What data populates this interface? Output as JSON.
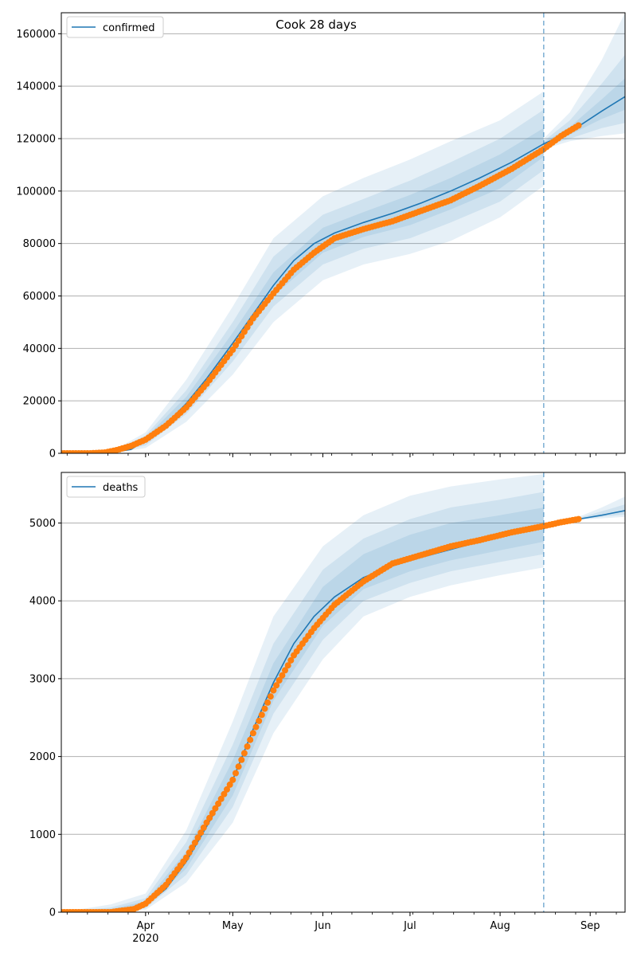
{
  "colors": {
    "model_line": "#1f77b4",
    "observed_points": "#ff7f0e",
    "band": "#1f77b4",
    "grid": "#b0b0b0",
    "forecast_marker": "#1f77b4"
  },
  "chart_data": [
    {
      "type": "line",
      "title": "Cook 28 days",
      "legend": {
        "entries": [
          "confirmed"
        ],
        "placement": "top-left"
      },
      "x_tick_labels": [
        {
          "date": "2020-04-01",
          "label": "Apr",
          "year": "2020"
        },
        {
          "date": "2020-05-01",
          "label": "May",
          "year": ""
        },
        {
          "date": "2020-06-01",
          "label": "Jun",
          "year": ""
        },
        {
          "date": "2020-07-01",
          "label": "Jul",
          "year": ""
        },
        {
          "date": "2020-08-01",
          "label": "Aug",
          "year": ""
        },
        {
          "date": "2020-09-01",
          "label": "Sep",
          "year": ""
        }
      ],
      "show_x_labels": false,
      "xlim": [
        "2020-03-03",
        "2020-09-13"
      ],
      "ylim": [
        0,
        168000
      ],
      "y_ticks": [
        0,
        20000,
        40000,
        60000,
        80000,
        100000,
        120000,
        140000,
        160000
      ],
      "grid": "y",
      "forecast_start": "2020-08-16",
      "series": [
        {
          "name": "confirmed",
          "style": "line",
          "x": [
            "2020-03-03",
            "2020-03-13",
            "2020-03-20",
            "2020-03-27",
            "2020-04-01",
            "2020-04-08",
            "2020-04-15",
            "2020-04-22",
            "2020-05-01",
            "2020-05-08",
            "2020-05-15",
            "2020-05-22",
            "2020-05-29",
            "2020-06-05",
            "2020-06-15",
            "2020-06-25",
            "2020-07-05",
            "2020-07-15",
            "2020-07-25",
            "2020-08-05",
            "2020-08-16",
            "2020-08-25",
            "2020-09-05",
            "2020-09-13"
          ],
          "y": [
            0,
            0,
            200,
            1500,
            5000,
            11000,
            19000,
            28500,
            42000,
            53000,
            64000,
            73500,
            80000,
            84000,
            88000,
            91500,
            95500,
            100000,
            105000,
            111000,
            118000,
            122500,
            130500,
            136000
          ]
        },
        {
          "name": "",
          "style": "points",
          "x": [
            "2020-03-03",
            "2020-03-13",
            "2020-03-18",
            "2020-03-22",
            "2020-03-27",
            "2020-04-01",
            "2020-04-08",
            "2020-04-15",
            "2020-04-22",
            "2020-05-01",
            "2020-05-08",
            "2020-05-15",
            "2020-05-22",
            "2020-05-29",
            "2020-06-05",
            "2020-06-15",
            "2020-06-25",
            "2020-07-05",
            "2020-07-15",
            "2020-07-25",
            "2020-08-05",
            "2020-08-16",
            "2020-08-22",
            "2020-08-28"
          ],
          "y": [
            0,
            0,
            300,
            1200,
            2800,
            5200,
            10500,
            17500,
            26500,
            39500,
            51500,
            61000,
            70000,
            76500,
            82000,
            85500,
            88500,
            92500,
            96500,
            102000,
            108500,
            116000,
            121000,
            125000
          ]
        }
      ],
      "bands": [
        {
          "x": [
            "2020-03-03",
            "2020-03-20",
            "2020-04-01",
            "2020-04-15",
            "2020-05-01",
            "2020-05-15",
            "2020-06-01",
            "2020-06-15",
            "2020-07-01",
            "2020-07-15",
            "2020-08-01",
            "2020-08-16"
          ],
          "lower": [
            0,
            0,
            2000,
            12000,
            30000,
            50000,
            66000,
            72000,
            76000,
            81000,
            90000,
            102000
          ],
          "upper": [
            0,
            500,
            8000,
            28000,
            56000,
            82000,
            98000,
            105000,
            112000,
            119000,
            127000,
            138000
          ]
        },
        {
          "x": [
            "2020-03-03",
            "2020-03-20",
            "2020-04-01",
            "2020-04-15",
            "2020-05-01",
            "2020-05-15",
            "2020-06-01",
            "2020-06-15",
            "2020-07-01",
            "2020-07-15",
            "2020-08-01",
            "2020-08-16"
          ],
          "lower": [
            0,
            0,
            3000,
            15000,
            35000,
            56000,
            72000,
            78000,
            82000,
            88000,
            96000,
            108000
          ],
          "upper": [
            0,
            350,
            6800,
            24000,
            50000,
            75000,
            91000,
            97000,
            104000,
            111000,
            120000,
            131000
          ]
        },
        {
          "x": [
            "2020-03-03",
            "2020-03-20",
            "2020-04-01",
            "2020-04-15",
            "2020-05-01",
            "2020-05-15",
            "2020-06-01",
            "2020-06-15",
            "2020-07-01",
            "2020-07-15",
            "2020-08-01",
            "2020-08-16"
          ],
          "lower": [
            0,
            0,
            4000,
            17000,
            38500,
            60000,
            76500,
            82500,
            87000,
            93000,
            101000,
            113000
          ],
          "upper": [
            0,
            250,
            6000,
            21500,
            46000,
            69000,
            86000,
            92000,
            98500,
            105000,
            114000,
            124000
          ]
        },
        {
          "x": [
            "2020-08-16",
            "2020-08-25",
            "2020-09-05",
            "2020-09-13"
          ],
          "lower": [
            116000,
            119000,
            121000,
            122000
          ],
          "upper": [
            120000,
            130000,
            150000,
            168000
          ]
        },
        {
          "x": [
            "2020-08-16",
            "2020-08-25",
            "2020-09-05",
            "2020-09-13"
          ],
          "lower": [
            117000,
            120000,
            124000,
            126000
          ],
          "upper": [
            119000,
            127000,
            141000,
            152000
          ]
        },
        {
          "x": [
            "2020-08-16",
            "2020-08-25",
            "2020-09-05",
            "2020-09-13"
          ],
          "lower": [
            117500,
            121500,
            127500,
            131000
          ],
          "upper": [
            118500,
            124500,
            135000,
            143000
          ]
        }
      ]
    },
    {
      "type": "line",
      "title": "",
      "legend": {
        "entries": [
          "deaths"
        ],
        "placement": "top-left"
      },
      "x_tick_labels": [
        {
          "date": "2020-04-01",
          "label": "Apr",
          "year": "2020"
        },
        {
          "date": "2020-05-01",
          "label": "May",
          "year": ""
        },
        {
          "date": "2020-06-01",
          "label": "Jun",
          "year": ""
        },
        {
          "date": "2020-07-01",
          "label": "Jul",
          "year": ""
        },
        {
          "date": "2020-08-01",
          "label": "Aug",
          "year": ""
        },
        {
          "date": "2020-09-01",
          "label": "Sep",
          "year": ""
        }
      ],
      "show_x_labels": true,
      "xlim": [
        "2020-03-03",
        "2020-09-13"
      ],
      "ylim": [
        0,
        5650
      ],
      "y_ticks": [
        0,
        1000,
        2000,
        3000,
        4000,
        5000
      ],
      "grid": "y",
      "forecast_start": "2020-08-16",
      "series": [
        {
          "name": "deaths",
          "style": "line",
          "x": [
            "2020-03-03",
            "2020-03-20",
            "2020-03-28",
            "2020-04-01",
            "2020-04-08",
            "2020-04-15",
            "2020-04-22",
            "2020-05-01",
            "2020-05-08",
            "2020-05-15",
            "2020-05-22",
            "2020-05-29",
            "2020-06-05",
            "2020-06-15",
            "2020-06-25",
            "2020-07-05",
            "2020-07-15",
            "2020-07-25",
            "2020-08-05",
            "2020-08-16",
            "2020-08-28",
            "2020-09-05",
            "2020-09-13"
          ],
          "y": [
            0,
            0,
            30,
            90,
            300,
            650,
            1100,
            1700,
            2350,
            2950,
            3450,
            3800,
            4050,
            4300,
            4450,
            4560,
            4660,
            4760,
            4870,
            4960,
            5050,
            5100,
            5160
          ]
        },
        {
          "name": "",
          "style": "points",
          "x": [
            "2020-03-03",
            "2020-03-20",
            "2020-03-28",
            "2020-04-01",
            "2020-04-08",
            "2020-04-15",
            "2020-04-22",
            "2020-05-01",
            "2020-05-08",
            "2020-05-15",
            "2020-05-22",
            "2020-05-29",
            "2020-06-05",
            "2020-06-15",
            "2020-06-25",
            "2020-07-05",
            "2020-07-15",
            "2020-07-25",
            "2020-08-05",
            "2020-08-16",
            "2020-08-22",
            "2020-08-28"
          ],
          "y": [
            0,
            0,
            40,
            110,
            350,
            700,
            1150,
            1700,
            2300,
            2850,
            3300,
            3650,
            3950,
            4250,
            4480,
            4590,
            4700,
            4780,
            4880,
            4960,
            5010,
            5050
          ]
        }
      ],
      "bands": [
        {
          "x": [
            "2020-03-03",
            "2020-03-20",
            "2020-04-01",
            "2020-04-15",
            "2020-05-01",
            "2020-05-15",
            "2020-06-01",
            "2020-06-15",
            "2020-07-01",
            "2020-07-15",
            "2020-08-01",
            "2020-08-16"
          ],
          "lower": [
            0,
            0,
            30,
            380,
            1150,
            2300,
            3250,
            3800,
            4050,
            4200,
            4330,
            4430
          ],
          "upper": [
            0,
            100,
            240,
            1050,
            2450,
            3800,
            4700,
            5100,
            5350,
            5470,
            5560,
            5630
          ]
        },
        {
          "x": [
            "2020-03-03",
            "2020-03-20",
            "2020-04-01",
            "2020-04-15",
            "2020-05-01",
            "2020-05-15",
            "2020-06-01",
            "2020-06-15",
            "2020-07-01",
            "2020-07-15",
            "2020-08-01",
            "2020-08-16"
          ],
          "lower": [
            0,
            0,
            50,
            480,
            1350,
            2550,
            3500,
            4000,
            4230,
            4380,
            4500,
            4600
          ],
          "upper": [
            0,
            60,
            180,
            900,
            2150,
            3450,
            4400,
            4800,
            5050,
            5200,
            5300,
            5400
          ]
        },
        {
          "x": [
            "2020-03-03",
            "2020-03-20",
            "2020-04-01",
            "2020-04-15",
            "2020-05-01",
            "2020-05-15",
            "2020-06-01",
            "2020-06-15",
            "2020-07-01",
            "2020-07-15",
            "2020-08-01",
            "2020-08-16"
          ],
          "lower": [
            0,
            0,
            70,
            560,
            1500,
            2720,
            3680,
            4150,
            4380,
            4520,
            4650,
            4760
          ],
          "upper": [
            0,
            40,
            140,
            780,
            1950,
            3200,
            4180,
            4600,
            4850,
            5000,
            5100,
            5200
          ]
        },
        {
          "x": [
            "2020-08-16",
            "2020-08-28",
            "2020-09-05",
            "2020-09-13"
          ],
          "lower": [
            4950,
            5040,
            5060,
            5080
          ],
          "upper": [
            4970,
            5080,
            5200,
            5340
          ]
        },
        {
          "x": [
            "2020-08-16",
            "2020-08-28",
            "2020-09-05",
            "2020-09-13"
          ],
          "lower": [
            4955,
            5045,
            5080,
            5110
          ],
          "upper": [
            4965,
            5065,
            5150,
            5240
          ]
        }
      ]
    }
  ]
}
